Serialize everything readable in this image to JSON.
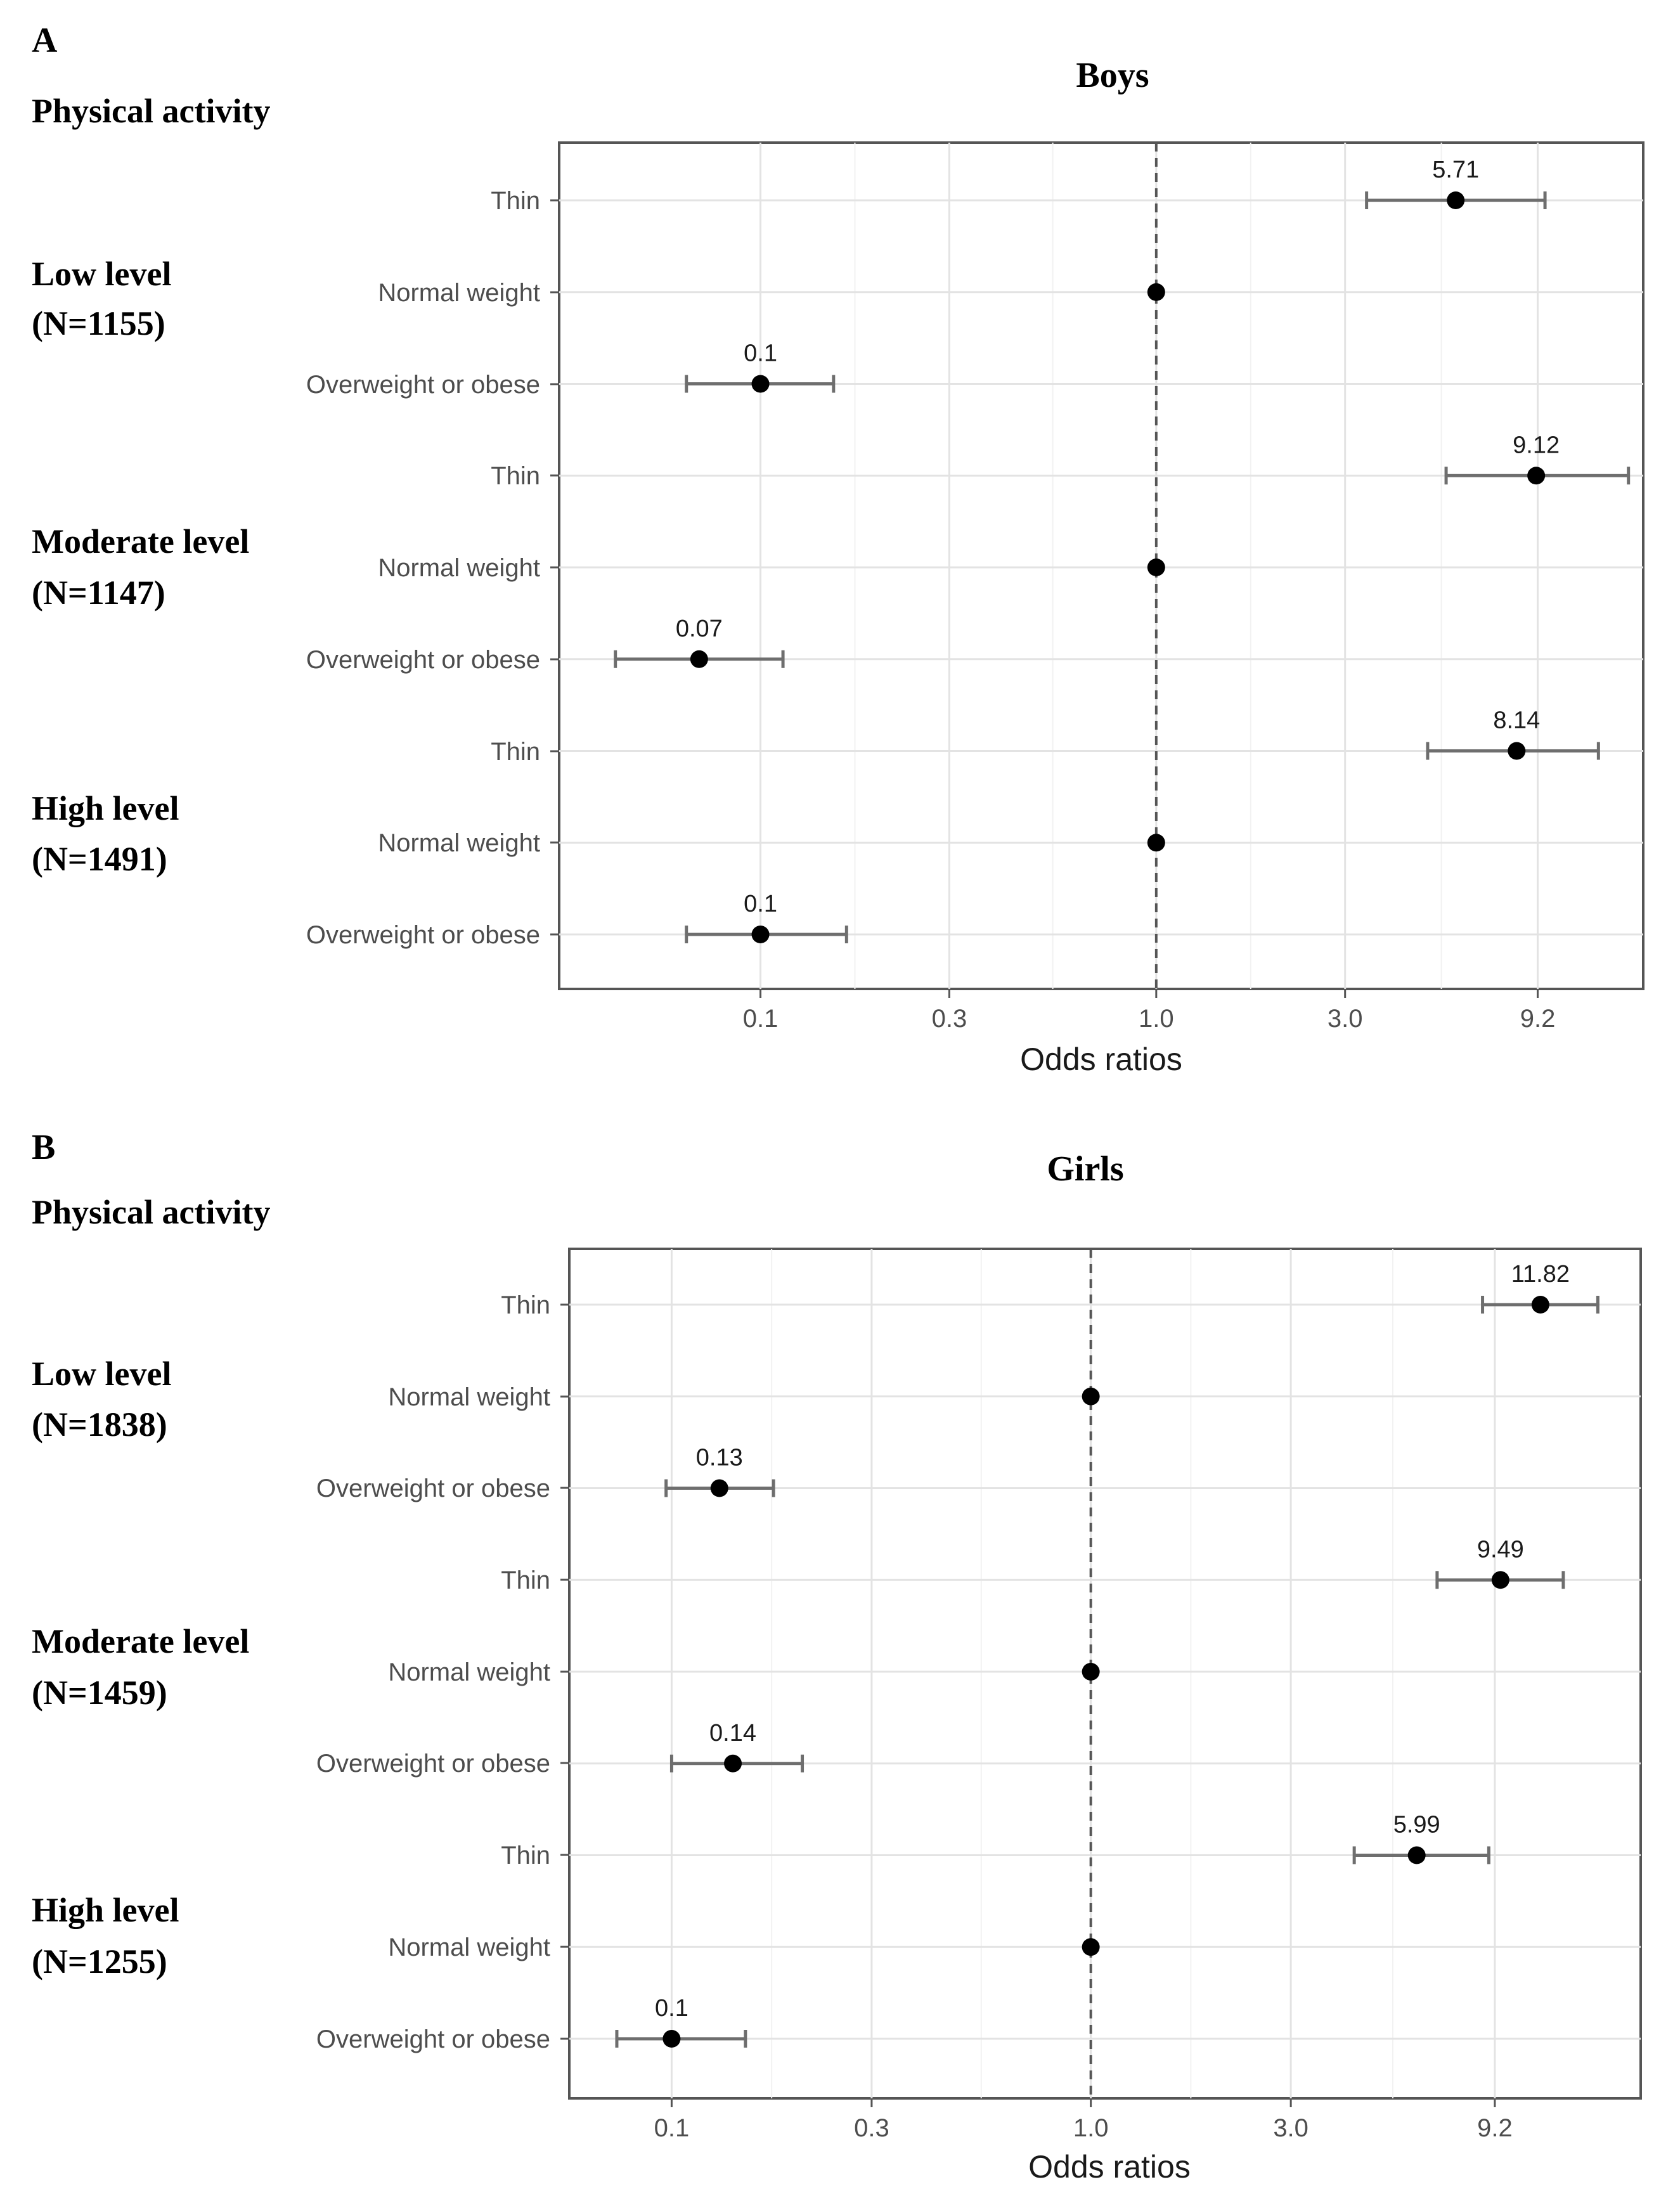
{
  "chart_data": [
    {
      "type": "forest",
      "panel_letter": "A",
      "title": "Boys",
      "section_title": "Physical activity",
      "xlabel": "Odds ratios",
      "x_scale": "log",
      "x_ticks": [
        0.1,
        0.3,
        1.0,
        3.0,
        9.2
      ],
      "x_tick_labels": [
        "0.1",
        "0.3",
        "1.0",
        "3.0",
        "9.2"
      ],
      "xlim": [
        0.031,
        17
      ],
      "reference_line": 1.0,
      "groups": [
        {
          "label_line1": "Low level",
          "label_line2": "(N=1155)",
          "rows": [
            {
              "label": "Thin",
              "or": 5.71,
              "lower": 3.4,
              "upper": 9.6,
              "value_label": "5.71"
            },
            {
              "label": "Normal weight",
              "or": 1.0,
              "lower": null,
              "upper": null,
              "value_label": ""
            },
            {
              "label": "Overweight or obese",
              "or": 0.1,
              "lower": 0.065,
              "upper": 0.153,
              "value_label": "0.1"
            }
          ]
        },
        {
          "label_line1": "Moderate level",
          "label_line2": "(N=1147)",
          "rows": [
            {
              "label": "Thin",
              "or": 9.12,
              "lower": 5.4,
              "upper": 15.6,
              "value_label": "9.12"
            },
            {
              "label": "Normal weight",
              "or": 1.0,
              "lower": null,
              "upper": null,
              "value_label": ""
            },
            {
              "label": "Overweight or obese",
              "or": 0.07,
              "lower": 0.043,
              "upper": 0.114,
              "value_label": "0.07"
            }
          ]
        },
        {
          "label_line1": "High level",
          "label_line2": "(N=1491)",
          "rows": [
            {
              "label": "Thin",
              "or": 8.14,
              "lower": 4.85,
              "upper": 13.1,
              "value_label": "8.14"
            },
            {
              "label": "Normal weight",
              "or": 1.0,
              "lower": null,
              "upper": null,
              "value_label": ""
            },
            {
              "label": "Overweight or obese",
              "or": 0.1,
              "lower": 0.065,
              "upper": 0.165,
              "value_label": "0.1"
            }
          ]
        }
      ]
    },
    {
      "type": "forest",
      "panel_letter": "B",
      "title": "Girls",
      "section_title": "Physical activity",
      "xlabel": "Odds ratios",
      "x_scale": "log",
      "x_ticks": [
        0.1,
        0.3,
        1.0,
        3.0,
        9.2
      ],
      "x_tick_labels": [
        "0.1",
        "0.3",
        "1.0",
        "3.0",
        "9.2"
      ],
      "xlim": [
        0.057,
        20.5
      ],
      "reference_line": 1.0,
      "groups": [
        {
          "label_line1": "Low level",
          "label_line2": "(N=1838)",
          "rows": [
            {
              "label": "Thin",
              "or": 11.82,
              "lower": 8.6,
              "upper": 16.2,
              "value_label": "11.82"
            },
            {
              "label": "Normal weight",
              "or": 1.0,
              "lower": null,
              "upper": null,
              "value_label": ""
            },
            {
              "label": "Overweight or obese",
              "or": 0.13,
              "lower": 0.097,
              "upper": 0.175,
              "value_label": "0.13"
            }
          ]
        },
        {
          "label_line1": "Moderate level",
          "label_line2": "(N=1459)",
          "rows": [
            {
              "label": "Thin",
              "or": 9.49,
              "lower": 6.7,
              "upper": 13.4,
              "value_label": "9.49"
            },
            {
              "label": "Normal weight",
              "or": 1.0,
              "lower": null,
              "upper": null,
              "value_label": ""
            },
            {
              "label": "Overweight or obese",
              "or": 0.14,
              "lower": 0.1,
              "upper": 0.205,
              "value_label": "0.14"
            }
          ]
        },
        {
          "label_line1": "High level",
          "label_line2": "(N=1255)",
          "rows": [
            {
              "label": "Thin",
              "or": 5.99,
              "lower": 4.25,
              "upper": 8.9,
              "value_label": "5.99"
            },
            {
              "label": "Normal weight",
              "or": 1.0,
              "lower": null,
              "upper": null,
              "value_label": ""
            },
            {
              "label": "Overweight or obese",
              "or": 0.1,
              "lower": 0.074,
              "upper": 0.15,
              "value_label": "0.1"
            }
          ]
        }
      ]
    }
  ]
}
